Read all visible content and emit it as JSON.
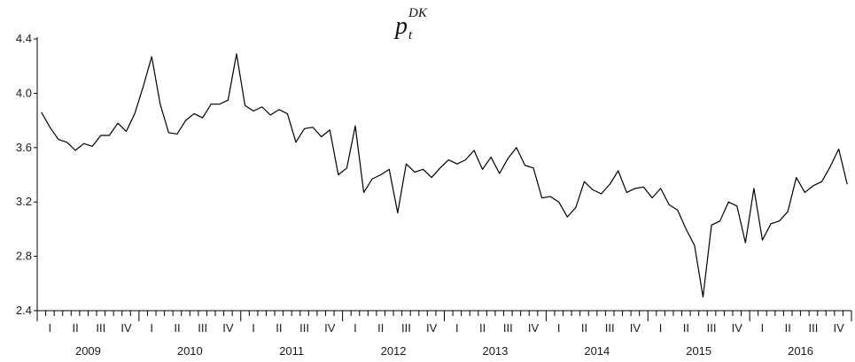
{
  "chart_data": {
    "type": "line",
    "title": {
      "main": "p",
      "subscript": "t",
      "superscript": "DK"
    },
    "ylim": [
      2.4,
      4.4
    ],
    "yticks": [
      "2.4",
      "2.8",
      "3.2",
      "3.6",
      "4.0",
      "4.4"
    ],
    "grid": false,
    "legend": "none",
    "start": "2009-01",
    "quarter_labels": [
      "I",
      "II",
      "III",
      "IV"
    ],
    "years": [
      "2009",
      "2010",
      "2011",
      "2012",
      "2013",
      "2014",
      "2015",
      "2016"
    ],
    "series": [
      {
        "color": "#000000",
        "values": [
          3.86,
          3.75,
          3.66,
          3.64,
          3.58,
          3.63,
          3.61,
          3.69,
          3.69,
          3.78,
          3.72,
          3.85,
          4.05,
          4.27,
          3.92,
          3.71,
          3.7,
          3.8,
          3.85,
          3.82,
          3.92,
          3.92,
          3.95,
          4.29,
          3.91,
          3.87,
          3.9,
          3.84,
          3.88,
          3.85,
          3.64,
          3.74,
          3.75,
          3.68,
          3.73,
          3.4,
          3.45,
          3.76,
          3.27,
          3.37,
          3.4,
          3.44,
          3.12,
          3.48,
          3.42,
          3.44,
          3.38,
          3.45,
          3.51,
          3.48,
          3.51,
          3.58,
          3.44,
          3.53,
          3.41,
          3.52,
          3.6,
          3.47,
          3.45,
          3.23,
          3.24,
          3.2,
          3.09,
          3.16,
          3.35,
          3.29,
          3.26,
          3.33,
          3.43,
          3.27,
          3.3,
          3.31,
          3.23,
          3.3,
          3.18,
          3.14,
          3.0,
          2.88,
          2.5,
          3.03,
          3.06,
          3.2,
          3.17,
          2.9,
          3.3,
          2.92,
          3.04,
          3.06,
          3.13,
          3.38,
          3.27,
          3.32,
          3.35,
          3.46,
          3.59,
          3.33
        ]
      }
    ]
  }
}
